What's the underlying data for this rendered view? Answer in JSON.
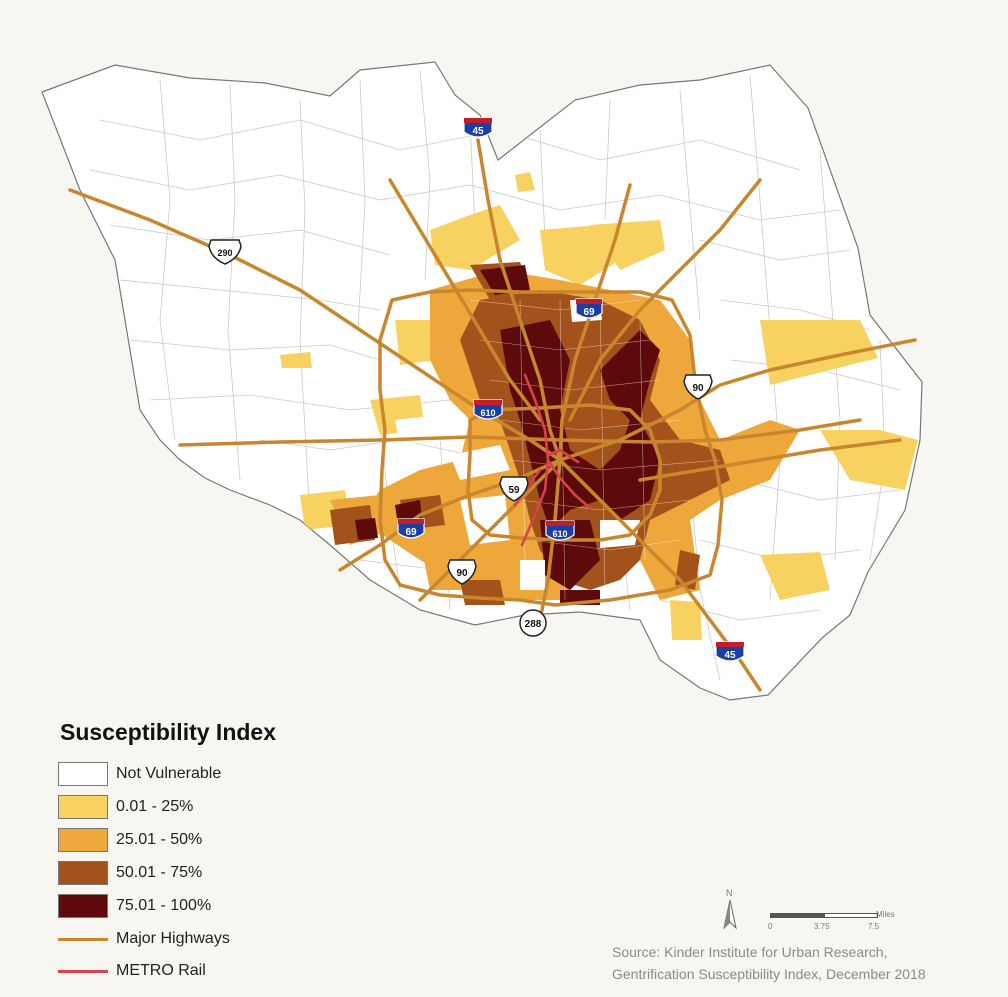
{
  "legend": {
    "title": "Susceptibility Index",
    "items": [
      {
        "label": "Not Vulnerable",
        "color": "#ffffff"
      },
      {
        "label": "0.01 - 25%",
        "color": "#f8d261"
      },
      {
        "label": "25.01 - 50%",
        "color": "#eda73a"
      },
      {
        "label": "50.01 - 75%",
        "color": "#a3521b"
      },
      {
        "label": "75.01 - 100%",
        "color": "#5c0a0a"
      }
    ],
    "lines": [
      {
        "label": "Major Highways",
        "color": "#c8872e"
      },
      {
        "label": "METRO Rail",
        "color": "#d8424a"
      }
    ]
  },
  "highway_shields": {
    "interstate": [
      "45",
      "69",
      "610",
      "69",
      "610",
      "45"
    ],
    "us": [
      "290",
      "90",
      "59",
      "90"
    ],
    "state": [
      "288"
    ]
  },
  "scale": {
    "unit": "Miles",
    "ticks": [
      "0",
      "3.75",
      "7.5"
    ]
  },
  "north_label": "N",
  "source": {
    "line1": "Source: Kinder Institute for Urban Research,",
    "line2": "Gentrification Susceptibility Index, December 2018"
  }
}
